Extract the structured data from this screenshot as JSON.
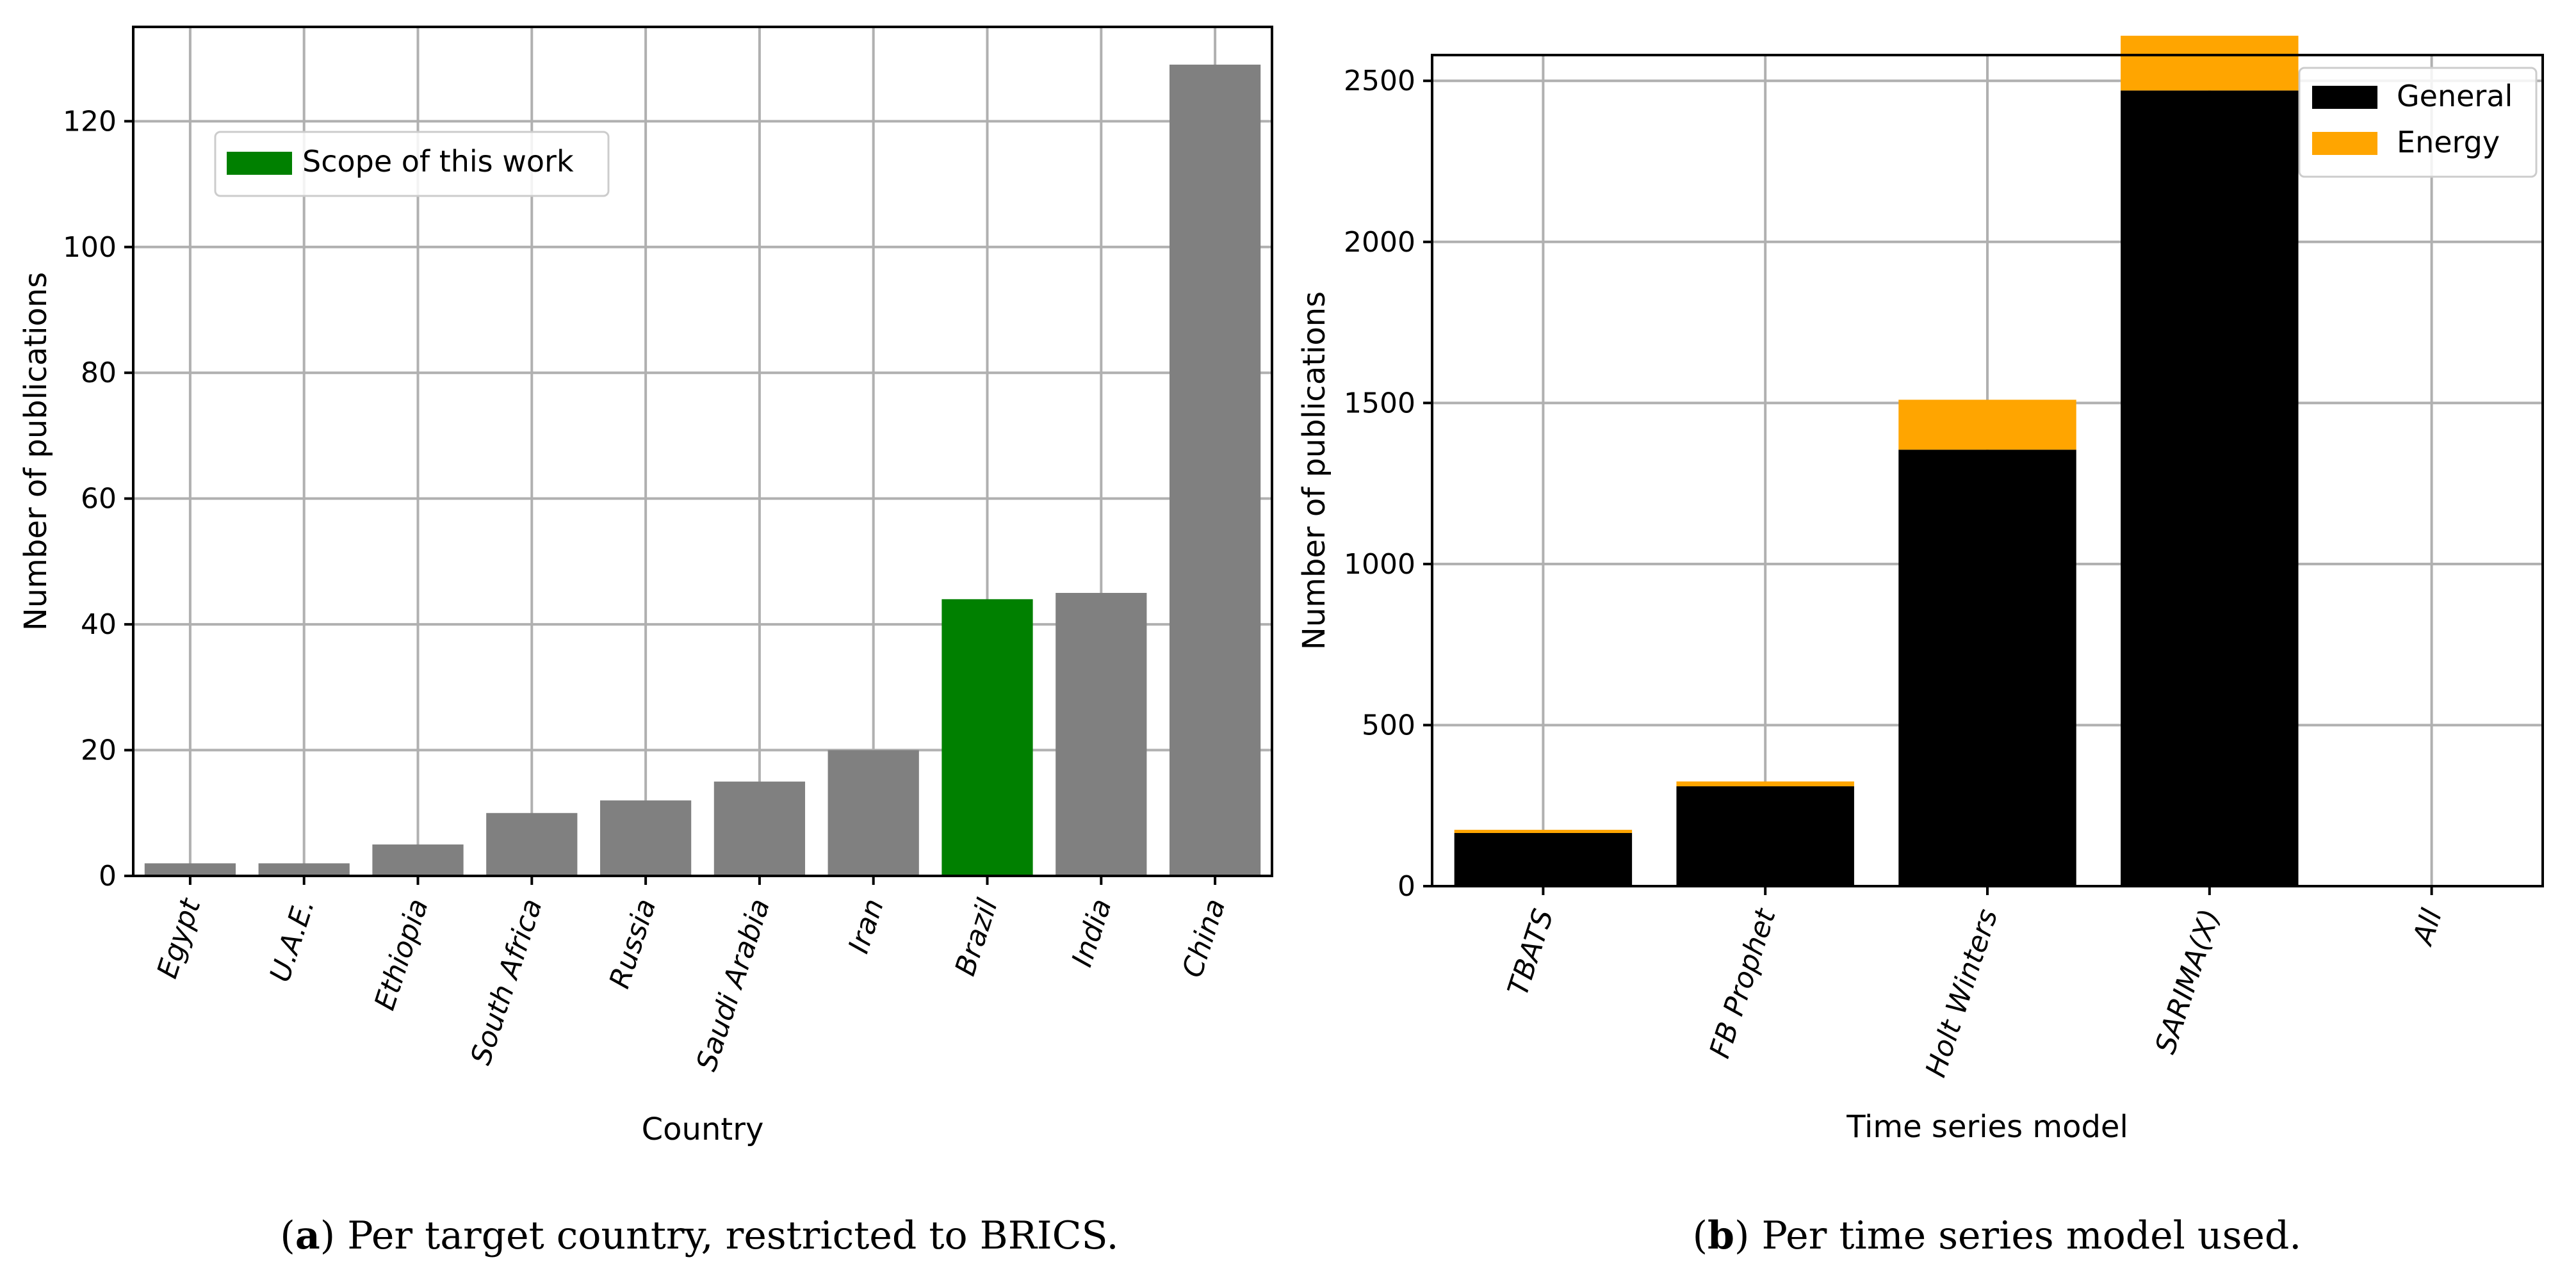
{
  "chart_data": [
    {
      "type": "bar",
      "id": "a",
      "categories": [
        "Egypt",
        "U.A.E.",
        "Ethiopia",
        "South Africa",
        "Russia",
        "Saudi Arabia",
        "Iran",
        "Brazil",
        "India",
        "China"
      ],
      "values": [
        2,
        2,
        5,
        10,
        12,
        15,
        20,
        44,
        45,
        129
      ],
      "colors": [
        "#808080",
        "#808080",
        "#808080",
        "#808080",
        "#808080",
        "#808080",
        "#808080",
        "#008000",
        "#808080",
        "#808080"
      ],
      "xlabel": "Country",
      "ylabel": "Number of publications",
      "ylim": [
        0,
        135
      ],
      "yticks": [
        0,
        20,
        40,
        60,
        80,
        100,
        120
      ],
      "grid": true,
      "legend": {
        "placement": "upper-left",
        "entries": [
          {
            "label": "Scope of this work",
            "color": "#008000"
          }
        ]
      },
      "caption": {
        "tag": "a",
        "text": ") Per target country, restricted to BRICS."
      }
    },
    {
      "type": "bar",
      "id": "b",
      "stacked": true,
      "categories": [
        "TBATS",
        "FB Prophet",
        "Holt Winters",
        "SARIMA(X)",
        "All"
      ],
      "series": [
        {
          "name": "General",
          "color": "#000000",
          "values": [
            165,
            310,
            1355,
            2470,
            0
          ]
        },
        {
          "name": "Energy",
          "color": "#FFA500",
          "values": [
            10,
            15,
            155,
            170,
            0
          ]
        }
      ],
      "xlabel": "Time series model",
      "ylabel": "Number of publications",
      "ylim": [
        0,
        2580
      ],
      "yticks": [
        0,
        500,
        1000,
        1500,
        2000,
        2500
      ],
      "grid": true,
      "legend": {
        "placement": "upper-right"
      },
      "caption": {
        "tag": "b",
        "text": ") Per time series model used."
      }
    }
  ]
}
